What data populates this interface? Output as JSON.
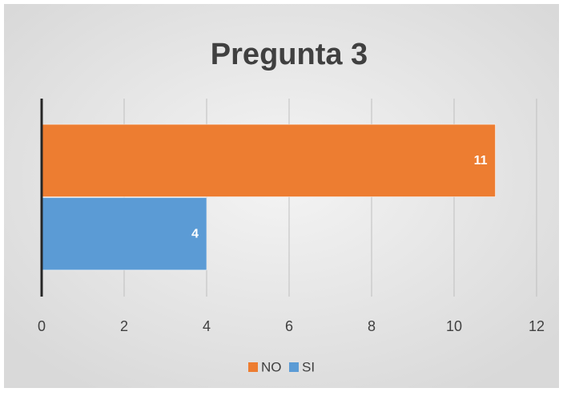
{
  "chart_data": {
    "type": "bar",
    "orientation": "horizontal",
    "title": "Pregunta 3",
    "categories": [
      null
    ],
    "series": [
      {
        "name": "NO",
        "color": "#ed7d31",
        "values": [
          11
        ]
      },
      {
        "name": "SI",
        "color": "#5b9bd5",
        "values": [
          4
        ]
      }
    ],
    "xlim": [
      0,
      12
    ],
    "xticks": [
      0,
      2,
      4,
      6,
      8,
      10,
      12
    ],
    "grid": true,
    "legend": "bottom"
  }
}
